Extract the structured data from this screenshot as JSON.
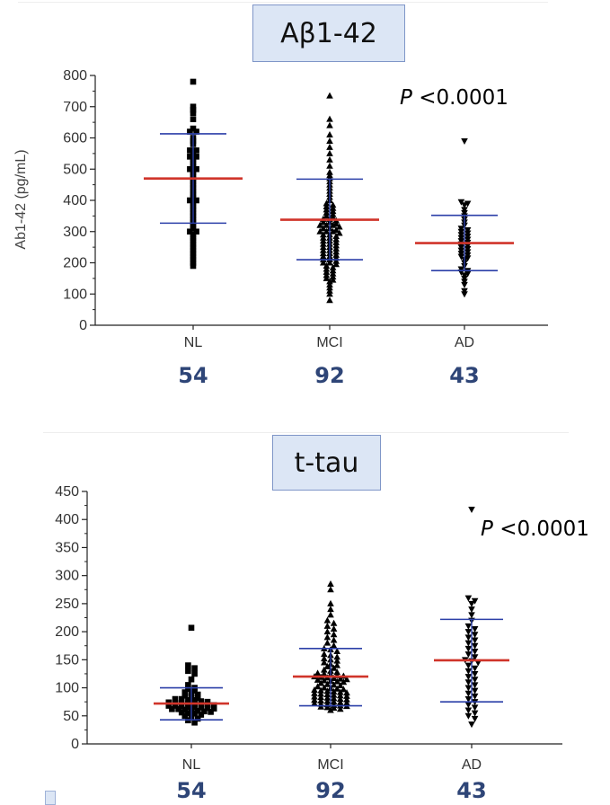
{
  "chart_data": [
    {
      "type": "scatter",
      "title": "Aβ1-42",
      "ylabel": "Ab1-42 (pg/mL)",
      "ylim": [
        0,
        800
      ],
      "yticks": [
        0,
        100,
        200,
        300,
        400,
        500,
        600,
        700,
        800
      ],
      "categories": [
        "NL",
        "MCI",
        "AD"
      ],
      "counts": [
        "54",
        "92",
        "43"
      ],
      "annotation": "<0.0001",
      "annotation_prefix": "P",
      "series": [
        {
          "category": "NL",
          "marker": "square",
          "mean": 470,
          "sd_low": 327,
          "sd_high": 613,
          "values": [
            780,
            700,
            690,
            680,
            660,
            630,
            620,
            620,
            600,
            590,
            580,
            560,
            560,
            550,
            540,
            540,
            530,
            520,
            510,
            500,
            500,
            490,
            480,
            470,
            460,
            450,
            440,
            430,
            420,
            410,
            400,
            400,
            390,
            380,
            370,
            360,
            350,
            340,
            330,
            320,
            310,
            300,
            290,
            280,
            270,
            260,
            250,
            240,
            230,
            220,
            210,
            200,
            190,
            300
          ]
        },
        {
          "category": "MCI",
          "marker": "triangle-up",
          "mean": 338,
          "sd_low": 210,
          "sd_high": 468,
          "values": [
            735,
            660,
            640,
            610,
            590,
            570,
            550,
            530,
            510,
            490,
            480,
            470,
            460,
            450,
            440,
            430,
            420,
            410,
            400,
            390,
            385,
            380,
            375,
            370,
            365,
            360,
            355,
            350,
            345,
            340,
            340,
            335,
            330,
            330,
            325,
            320,
            320,
            315,
            310,
            310,
            305,
            300,
            300,
            300,
            295,
            290,
            290,
            285,
            280,
            280,
            275,
            270,
            270,
            265,
            260,
            260,
            255,
            250,
            250,
            245,
            240,
            240,
            235,
            230,
            230,
            225,
            220,
            220,
            215,
            210,
            210,
            205,
            200,
            200,
            195,
            190,
            185,
            180,
            175,
            170,
            165,
            160,
            155,
            150,
            145,
            140,
            130,
            120,
            110,
            100,
            80,
            320
          ]
        },
        {
          "category": "AD",
          "marker": "triangle-down",
          "mean": 263,
          "sd_low": 175,
          "sd_high": 352,
          "values": [
            590,
            395,
            390,
            385,
            370,
            360,
            350,
            340,
            330,
            320,
            310,
            305,
            300,
            295,
            290,
            285,
            280,
            275,
            270,
            265,
            260,
            255,
            250,
            245,
            240,
            235,
            230,
            225,
            220,
            215,
            210,
            200,
            190,
            180,
            175,
            170,
            165,
            160,
            150,
            140,
            130,
            110,
            100
          ]
        }
      ]
    },
    {
      "type": "scatter",
      "title": "t-tau",
      "ylabel": "",
      "ylim": [
        0,
        450
      ],
      "yticks": [
        0,
        50,
        100,
        150,
        200,
        250,
        300,
        350,
        400,
        450
      ],
      "categories": [
        "NL",
        "MCI",
        "AD"
      ],
      "counts": [
        "54",
        "92",
        "43"
      ],
      "annotation": "<0.0001",
      "annotation_prefix": "P",
      "series": [
        {
          "category": "NL",
          "marker": "square",
          "mean": 72,
          "sd_low": 43,
          "sd_high": 100,
          "values": [
            207,
            140,
            135,
            130,
            125,
            115,
            105,
            100,
            98,
            95,
            92,
            90,
            88,
            86,
            84,
            82,
            80,
            80,
            78,
            78,
            76,
            75,
            74,
            73,
            72,
            72,
            71,
            70,
            70,
            69,
            68,
            68,
            67,
            66,
            65,
            65,
            64,
            63,
            62,
            62,
            61,
            60,
            59,
            58,
            57,
            56,
            55,
            54,
            52,
            50,
            48,
            45,
            42,
            38
          ]
        },
        {
          "category": "MCI",
          "marker": "triangle-up",
          "mean": 120,
          "sd_low": 68,
          "sd_high": 170,
          "values": [
            285,
            275,
            250,
            240,
            230,
            220,
            215,
            210,
            205,
            200,
            195,
            190,
            185,
            180,
            175,
            170,
            168,
            165,
            160,
            158,
            155,
            152,
            150,
            148,
            145,
            142,
            140,
            138,
            135,
            132,
            130,
            128,
            126,
            125,
            124,
            122,
            121,
            120,
            119,
            118,
            117,
            116,
            115,
            114,
            113,
            112,
            111,
            110,
            108,
            106,
            105,
            104,
            102,
            100,
            99,
            98,
            97,
            96,
            95,
            94,
            93,
            92,
            91,
            90,
            89,
            88,
            87,
            86,
            85,
            84,
            83,
            82,
            81,
            80,
            79,
            78,
            77,
            76,
            75,
            74,
            73,
            72,
            71,
            70,
            69,
            68,
            67,
            66,
            65,
            64,
            62,
            60
          ]
        },
        {
          "category": "AD",
          "marker": "triangle-down",
          "mean": 149,
          "sd_low": 75,
          "sd_high": 222,
          "values": [
            418,
            260,
            255,
            250,
            240,
            230,
            220,
            210,
            205,
            200,
            195,
            190,
            185,
            180,
            175,
            170,
            165,
            160,
            155,
            150,
            148,
            145,
            140,
            135,
            130,
            125,
            120,
            115,
            110,
            105,
            100,
            95,
            90,
            85,
            80,
            75,
            70,
            65,
            60,
            55,
            50,
            45,
            35
          ]
        }
      ]
    }
  ]
}
